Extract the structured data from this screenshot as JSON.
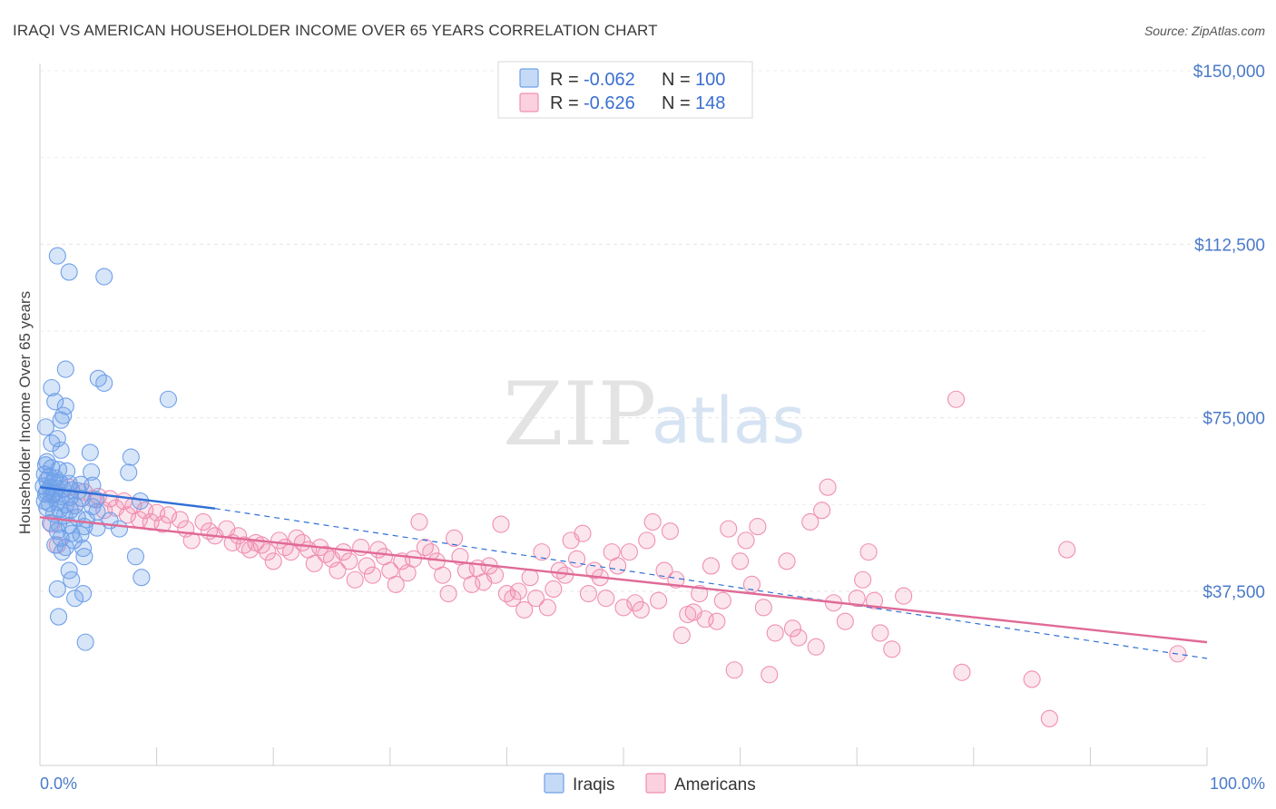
{
  "title": "IRAQI VS AMERICAN HOUSEHOLDER INCOME OVER 65 YEARS CORRELATION CHART",
  "source": "Source: ZipAtlas.com",
  "watermark": {
    "zip": "ZIP",
    "atlas": "atlas"
  },
  "legend": {
    "rows": [
      {
        "r_label": "R =",
        "r_value": "-0.062",
        "n_label": "N =",
        "n_value": "100",
        "color": "#6fa0e8"
      },
      {
        "r_label": "R =",
        "r_value": "-0.626",
        "n_label": "N =",
        "n_value": "148",
        "color": "#f08fb0"
      }
    ]
  },
  "bottom_legend": [
    {
      "label": "Iraqis",
      "color": "#6fa0e8"
    },
    {
      "label": "Americans",
      "color": "#f08fb0"
    }
  ],
  "chart_data": {
    "type": "scatter",
    "xlabel": "",
    "ylabel": "Householder Income Over 65 years",
    "x_tick_labels": [
      "0.0%",
      "100.0%"
    ],
    "y_tick_labels": [
      "$37,500",
      "$75,000",
      "$112,500",
      "$150,000"
    ],
    "y_ticks": [
      37500,
      75000,
      112500,
      150000
    ],
    "xlim": [
      0,
      100
    ],
    "ylim": [
      0,
      155000
    ],
    "grid": true,
    "series": [
      {
        "name": "Iraqis",
        "color": "#6fa0e8",
        "line_color": "#2f6fd6",
        "trend": {
          "solid": [
            [
              0,
              60000
            ],
            [
              15,
              55400
            ]
          ],
          "dashed": [
            [
              15,
              55400
            ],
            [
              100,
              23000
            ]
          ]
        },
        "points": [
          [
            1.5,
            110000
          ],
          [
            2.5,
            106500
          ],
          [
            5.5,
            105500
          ],
          [
            2.2,
            85500
          ],
          [
            5.0,
            83500
          ],
          [
            5.5,
            82500
          ],
          [
            1.0,
            81500
          ],
          [
            1.3,
            78500
          ],
          [
            2.2,
            77500
          ],
          [
            1.8,
            74500
          ],
          [
            11,
            79000
          ],
          [
            2.0,
            75500
          ],
          [
            0.5,
            73000
          ],
          [
            1.5,
            70500
          ],
          [
            1.0,
            69500
          ],
          [
            1.8,
            68000
          ],
          [
            4.3,
            67500
          ],
          [
            7.8,
            66500
          ],
          [
            0.6,
            65500
          ],
          [
            0.5,
            64800
          ],
          [
            1.0,
            64200
          ],
          [
            1.6,
            63800
          ],
          [
            2.3,
            63500
          ],
          [
            4.4,
            63300
          ],
          [
            7.6,
            63200
          ],
          [
            0.4,
            62800
          ],
          [
            0.8,
            62300
          ],
          [
            1.3,
            62000
          ],
          [
            0.6,
            61500
          ],
          [
            1.1,
            61200
          ],
          [
            1.7,
            61000
          ],
          [
            2.5,
            60800
          ],
          [
            3.5,
            60600
          ],
          [
            4.5,
            60400
          ],
          [
            0.3,
            60200
          ],
          [
            0.9,
            60000
          ],
          [
            1.4,
            59800
          ],
          [
            2.0,
            59600
          ],
          [
            2.7,
            59400
          ],
          [
            3.3,
            59200
          ],
          [
            0.6,
            59000
          ],
          [
            1.2,
            58800
          ],
          [
            0.5,
            58500
          ],
          [
            1.0,
            58300
          ],
          [
            1.8,
            58000
          ],
          [
            2.6,
            57800
          ],
          [
            3.6,
            57600
          ],
          [
            4.8,
            57300
          ],
          [
            0.4,
            57000
          ],
          [
            1.5,
            56800
          ],
          [
            0.8,
            56500
          ],
          [
            2.2,
            56200
          ],
          [
            3.0,
            56000
          ],
          [
            4.5,
            55800
          ],
          [
            0.6,
            55500
          ],
          [
            1.7,
            55200
          ],
          [
            2.6,
            55000
          ],
          [
            4.9,
            54700
          ],
          [
            8.6,
            57000
          ],
          [
            1.2,
            54200
          ],
          [
            2.1,
            53800
          ],
          [
            3.2,
            53500
          ],
          [
            4.0,
            53000
          ],
          [
            6.0,
            52800
          ],
          [
            0.9,
            52300
          ],
          [
            1.6,
            52000
          ],
          [
            2.5,
            51700
          ],
          [
            3.8,
            51500
          ],
          [
            4.9,
            51200
          ],
          [
            6.8,
            51000
          ],
          [
            1.5,
            50500
          ],
          [
            2.7,
            50000
          ],
          [
            3.5,
            49800
          ],
          [
            1.8,
            49000
          ],
          [
            2.9,
            48500
          ],
          [
            1.3,
            47500
          ],
          [
            2.2,
            47000
          ],
          [
            3.7,
            46800
          ],
          [
            1.9,
            46000
          ],
          [
            3.8,
            45000
          ],
          [
            8.2,
            45000
          ],
          [
            2.5,
            42000
          ],
          [
            8.7,
            40500
          ],
          [
            2.7,
            40000
          ],
          [
            1.5,
            38000
          ],
          [
            3.7,
            37000
          ],
          [
            3.0,
            36000
          ],
          [
            1.6,
            32000
          ],
          [
            3.9,
            26500
          ]
        ]
      },
      {
        "name": "Americans",
        "color": "#f08fb0",
        "line_color": "#e06a96",
        "trend": {
          "solid": [
            [
              0,
              53500
            ],
            [
              100,
              26500
            ]
          ]
        },
        "points": [
          [
            1.2,
            58500
          ],
          [
            2.5,
            60000
          ],
          [
            3.8,
            59000
          ],
          [
            5.0,
            58000
          ],
          [
            6.0,
            57500
          ],
          [
            7.2,
            57000
          ],
          [
            8.0,
            56000
          ],
          [
            9.0,
            55000
          ],
          [
            10.0,
            54500
          ],
          [
            11.0,
            54000
          ],
          [
            1.0,
            52000
          ],
          [
            1.5,
            47500
          ],
          [
            3.0,
            56000
          ],
          [
            4.5,
            57500
          ],
          [
            5.5,
            55000
          ],
          [
            6.5,
            55500
          ],
          [
            7.5,
            54000
          ],
          [
            8.5,
            53000
          ],
          [
            9.5,
            52500
          ],
          [
            10.5,
            52000
          ],
          [
            12.0,
            53000
          ],
          [
            12.5,
            51000
          ],
          [
            13.0,
            48500
          ],
          [
            14.0,
            52500
          ],
          [
            14.5,
            50500
          ],
          [
            15.0,
            49500
          ],
          [
            16.0,
            51000
          ],
          [
            16.5,
            48000
          ],
          [
            17.0,
            49500
          ],
          [
            17.5,
            47500
          ],
          [
            18.0,
            46500
          ],
          [
            18.5,
            48000
          ],
          [
            19.0,
            47500
          ],
          [
            19.5,
            46000
          ],
          [
            20.0,
            44000
          ],
          [
            20.5,
            48500
          ],
          [
            21.0,
            47000
          ],
          [
            21.5,
            46000
          ],
          [
            22.0,
            49000
          ],
          [
            22.5,
            48000
          ],
          [
            23.0,
            46500
          ],
          [
            23.5,
            43500
          ],
          [
            24.0,
            47000
          ],
          [
            24.5,
            45500
          ],
          [
            25.0,
            44500
          ],
          [
            25.5,
            42000
          ],
          [
            26.0,
            46000
          ],
          [
            26.5,
            44000
          ],
          [
            27.0,
            40000
          ],
          [
            27.5,
            47000
          ],
          [
            28.0,
            43000
          ],
          [
            28.5,
            41000
          ],
          [
            29.0,
            46500
          ],
          [
            29.5,
            45000
          ],
          [
            30.0,
            42000
          ],
          [
            30.5,
            39000
          ],
          [
            31.0,
            44000
          ],
          [
            31.5,
            41500
          ],
          [
            32.0,
            44500
          ],
          [
            32.5,
            52500
          ],
          [
            33.0,
            47000
          ],
          [
            33.5,
            46000
          ],
          [
            34.0,
            44000
          ],
          [
            34.5,
            41000
          ],
          [
            35.0,
            37000
          ],
          [
            35.5,
            49000
          ],
          [
            36.0,
            45000
          ],
          [
            36.5,
            42000
          ],
          [
            37.0,
            39000
          ],
          [
            37.5,
            42500
          ],
          [
            38.0,
            39500
          ],
          [
            38.5,
            43000
          ],
          [
            39.0,
            41000
          ],
          [
            39.5,
            52000
          ],
          [
            40.0,
            37000
          ],
          [
            40.5,
            36000
          ],
          [
            41.0,
            37500
          ],
          [
            41.5,
            33500
          ],
          [
            42.0,
            40500
          ],
          [
            42.5,
            36000
          ],
          [
            43.0,
            46000
          ],
          [
            43.5,
            34000
          ],
          [
            44.0,
            38000
          ],
          [
            44.5,
            42000
          ],
          [
            45.0,
            41000
          ],
          [
            45.5,
            48500
          ],
          [
            46.0,
            44500
          ],
          [
            46.5,
            50000
          ],
          [
            47.0,
            37000
          ],
          [
            47.5,
            42000
          ],
          [
            48.0,
            40500
          ],
          [
            48.5,
            36000
          ],
          [
            49.0,
            46000
          ],
          [
            49.5,
            43000
          ],
          [
            50.0,
            34000
          ],
          [
            50.5,
            46000
          ],
          [
            51.0,
            35000
          ],
          [
            51.5,
            33500
          ],
          [
            52.0,
            48500
          ],
          [
            52.5,
            52500
          ],
          [
            53.0,
            35500
          ],
          [
            53.5,
            42000
          ],
          [
            54.0,
            50500
          ],
          [
            54.5,
            40000
          ],
          [
            55.0,
            28000
          ],
          [
            55.5,
            32500
          ],
          [
            56.0,
            33000
          ],
          [
            56.5,
            37000
          ],
          [
            57.0,
            31500
          ],
          [
            57.5,
            43000
          ],
          [
            58.0,
            31000
          ],
          [
            58.5,
            35500
          ],
          [
            59.0,
            51000
          ],
          [
            59.5,
            20500
          ],
          [
            60.0,
            44000
          ],
          [
            60.5,
            48500
          ],
          [
            61.0,
            39000
          ],
          [
            61.5,
            51500
          ],
          [
            62.0,
            34000
          ],
          [
            62.5,
            19500
          ],
          [
            63.0,
            28500
          ],
          [
            64.0,
            44000
          ],
          [
            64.5,
            29500
          ],
          [
            65.0,
            27500
          ],
          [
            66.0,
            52500
          ],
          [
            66.5,
            25500
          ],
          [
            67.0,
            55000
          ],
          [
            67.5,
            60000
          ],
          [
            68.0,
            35000
          ],
          [
            69.0,
            31000
          ],
          [
            70.0,
            36000
          ],
          [
            70.5,
            40000
          ],
          [
            71.0,
            46000
          ],
          [
            71.5,
            35500
          ],
          [
            72.0,
            28500
          ],
          [
            73.0,
            25000
          ],
          [
            74.0,
            36500
          ],
          [
            78.5,
            79000
          ],
          [
            79.0,
            20000
          ],
          [
            85.0,
            18500
          ],
          [
            86.5,
            10000
          ],
          [
            88.0,
            46500
          ],
          [
            97.5,
            24000
          ]
        ]
      }
    ]
  }
}
